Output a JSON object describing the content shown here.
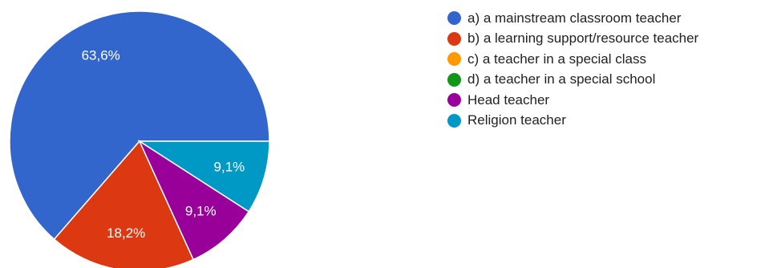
{
  "chart_data": {
    "type": "pie",
    "title": "",
    "slices": [
      {
        "label": "a) a mainstream classroom teacher",
        "value": 63.6,
        "display": "63,6%",
        "color": "#3366cc"
      },
      {
        "label": "b) a learning support/resource teacher",
        "value": 18.2,
        "display": "18,2%",
        "color": "#dc3912"
      },
      {
        "label": "c) a teacher in a special class",
        "value": 0,
        "display": "",
        "color": "#ff9900"
      },
      {
        "label": "d) a teacher in a special school",
        "value": 0,
        "display": "",
        "color": "#109618"
      },
      {
        "label": "Head teacher",
        "value": 9.1,
        "display": "9,1%",
        "color": "#990099"
      },
      {
        "label": "Religion teacher",
        "value": 9.1,
        "display": "9,1%",
        "color": "#0099c6"
      }
    ],
    "legend_position": "right"
  }
}
